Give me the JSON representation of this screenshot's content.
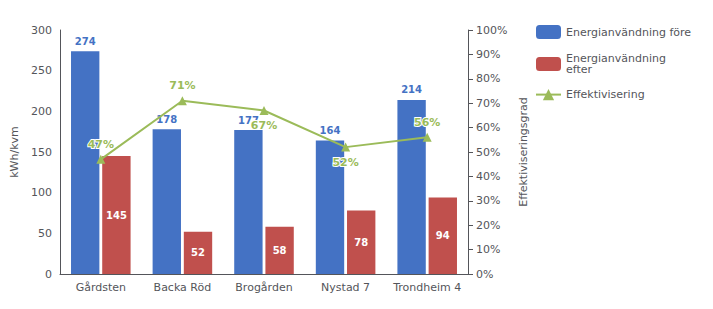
{
  "chart_data": {
    "type": "bar",
    "categories": [
      "Gårdsten",
      "Backa Röd",
      "Brogården",
      "Nystad 7",
      "Trondheim 4"
    ],
    "ylabel": "kWh/kvm",
    "y2label": "Effektiviseringsgrad",
    "ylim": [
      0,
      300
    ],
    "yticks": [
      0,
      50,
      100,
      150,
      200,
      250,
      300
    ],
    "y2lim": [
      0,
      1.0
    ],
    "y2ticks": [
      {
        "value": 0.0,
        "label": "0%"
      },
      {
        "value": 0.1,
        "label": "10%"
      },
      {
        "value": 0.2,
        "label": "20%"
      },
      {
        "value": 0.3,
        "label": "30%"
      },
      {
        "value": 0.4,
        "label": "40%"
      },
      {
        "value": 0.5,
        "label": "50%"
      },
      {
        "value": 0.6,
        "label": "60%"
      },
      {
        "value": 0.7,
        "label": "70%"
      },
      {
        "value": 0.8,
        "label": "80%"
      },
      {
        "value": 0.9,
        "label": "90%"
      },
      {
        "value": 1.0,
        "label": "100%"
      }
    ],
    "grid": false,
    "legend": "right",
    "series": [
      {
        "name": "Energianvändning före",
        "type": "bar",
        "color": "#4472C4",
        "data_labels": true,
        "values": [
          274,
          178,
          177,
          164,
          214
        ]
      },
      {
        "name": "Energianvändning\nefter",
        "type": "bar",
        "color": "#C0504D",
        "data_labels": true,
        "values": [
          145,
          52,
          58,
          78,
          94
        ]
      },
      {
        "name": "Effektivisering",
        "type": "line",
        "axis": "y2",
        "color": "#9BBB59",
        "marker": "triangle",
        "data_labels": true,
        "values": [
          0.47,
          0.71,
          0.67,
          0.52,
          0.56
        ],
        "value_labels": [
          "47%",
          "71%",
          "67%",
          "52%",
          "56%"
        ]
      }
    ]
  }
}
